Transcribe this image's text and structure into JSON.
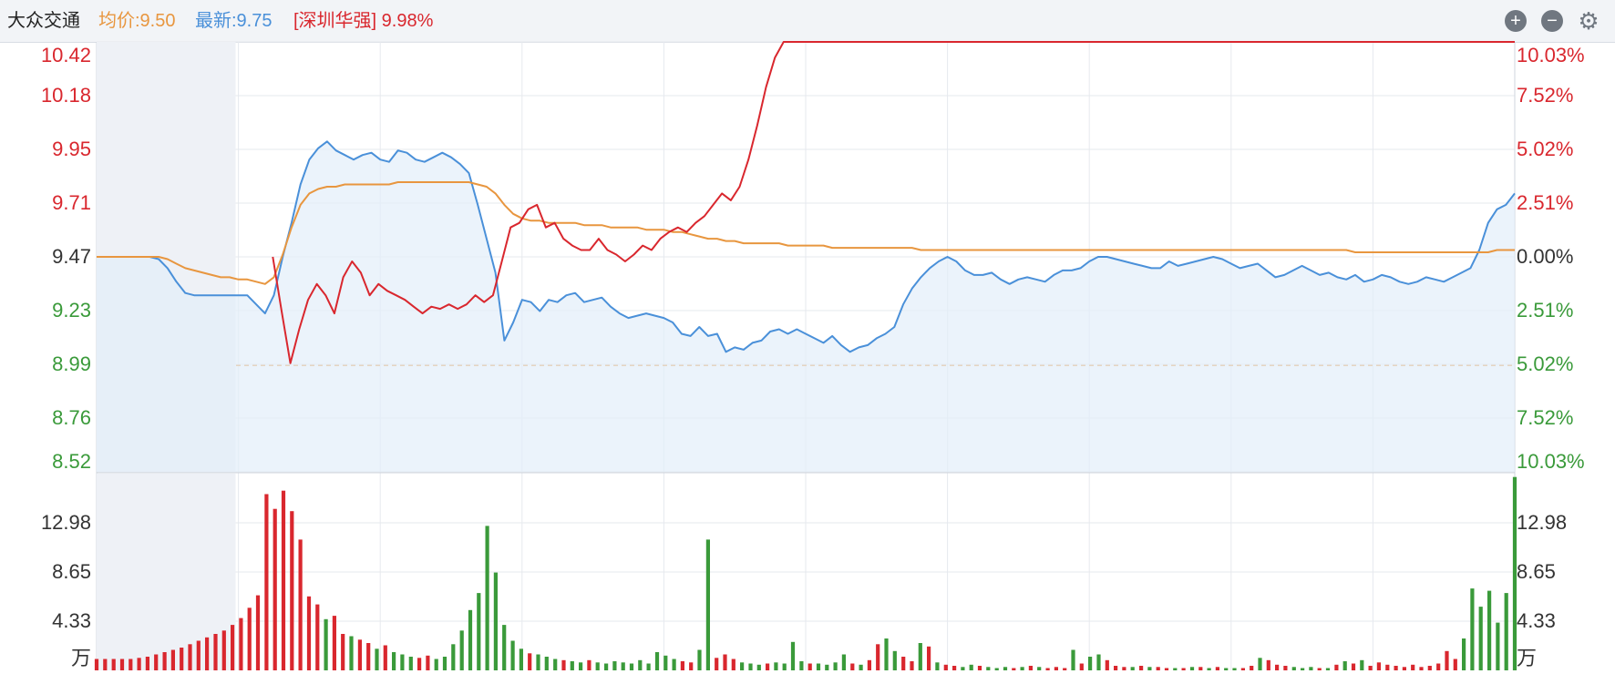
{
  "header": {
    "stock_name": "大众交通",
    "avg_label": "均价:9.50",
    "last_label": "最新:9.75",
    "compare_label": "[深圳华强] 9.98%"
  },
  "colors": {
    "price_line": "#4a90d9",
    "avg_line": "#e8963f",
    "compare_line": "#d9272e",
    "up_red": "#d9272e",
    "down_green": "#3a9a3a",
    "grid": "#e6e9ee",
    "prev_close_line": "#e8963f"
  },
  "icons": {
    "zoom_in": "plus-circle-icon",
    "zoom_out": "minus-circle-icon",
    "settings": "gear-icon"
  },
  "chart_data": {
    "type": "line",
    "title": "大众交通",
    "price_axis_ticks": [
      "10.42",
      "10.18",
      "9.95",
      "9.71",
      "9.47",
      "9.23",
      "8.99",
      "8.76",
      "8.52"
    ],
    "percent_axis_ticks": [
      "10.03%",
      "7.52%",
      "5.02%",
      "2.51%",
      "0.00%",
      "2.51%",
      "5.02%",
      "7.52%",
      "10.03%"
    ],
    "volume_axis_ticks": [
      "12.98",
      "8.65",
      "4.33",
      "万"
    ],
    "ylim_price": [
      8.52,
      10.42
    ],
    "prev_close": 9.47,
    "limit_line_price": 8.99,
    "pre_market_fraction": 0.098,
    "series": [
      {
        "name": "最新",
        "values": [
          9.47,
          9.47,
          9.47,
          9.47,
          9.47,
          9.47,
          9.47,
          9.46,
          9.42,
          9.36,
          9.31,
          9.3,
          9.3,
          9.3,
          9.3,
          9.3,
          9.3,
          9.3,
          9.26,
          9.22,
          9.3,
          9.47,
          9.62,
          9.79,
          9.9,
          9.95,
          9.98,
          9.94,
          9.92,
          9.9,
          9.92,
          9.93,
          9.9,
          9.89,
          9.94,
          9.93,
          9.9,
          9.89,
          9.91,
          9.93,
          9.91,
          9.88,
          9.84,
          9.7,
          9.55,
          9.4,
          9.1,
          9.18,
          9.28,
          9.27,
          9.23,
          9.28,
          9.27,
          9.3,
          9.31,
          9.27,
          9.28,
          9.29,
          9.25,
          9.22,
          9.2,
          9.21,
          9.22,
          9.21,
          9.2,
          9.18,
          9.13,
          9.12,
          9.16,
          9.12,
          9.13,
          9.05,
          9.07,
          9.06,
          9.09,
          9.1,
          9.14,
          9.15,
          9.13,
          9.15,
          9.13,
          9.11,
          9.09,
          9.12,
          9.08,
          9.05,
          9.07,
          9.08,
          9.11,
          9.13,
          9.16,
          9.26,
          9.33,
          9.38,
          9.42,
          9.45,
          9.47,
          9.45,
          9.41,
          9.39,
          9.39,
          9.4,
          9.37,
          9.35,
          9.37,
          9.38,
          9.37,
          9.36,
          9.39,
          9.41,
          9.41,
          9.42,
          9.45,
          9.47,
          9.47,
          9.46,
          9.45,
          9.44,
          9.43,
          9.42,
          9.42,
          9.45,
          9.43,
          9.44,
          9.45,
          9.46,
          9.47,
          9.46,
          9.44,
          9.42,
          9.43,
          9.44,
          9.41,
          9.38,
          9.39,
          9.41,
          9.43,
          9.41,
          9.39,
          9.4,
          9.38,
          9.37,
          9.39,
          9.36,
          9.37,
          9.39,
          9.38,
          9.36,
          9.35,
          9.36,
          9.38,
          9.37,
          9.36,
          9.38,
          9.4,
          9.42,
          9.5,
          9.62,
          9.68,
          9.7,
          9.75
        ]
      },
      {
        "name": "均价",
        "values": [
          9.47,
          9.47,
          9.47,
          9.47,
          9.47,
          9.47,
          9.47,
          9.47,
          9.46,
          9.44,
          9.42,
          9.41,
          9.4,
          9.39,
          9.38,
          9.38,
          9.37,
          9.37,
          9.36,
          9.35,
          9.38,
          9.48,
          9.6,
          9.7,
          9.75,
          9.77,
          9.78,
          9.78,
          9.79,
          9.79,
          9.79,
          9.79,
          9.79,
          9.79,
          9.8,
          9.8,
          9.8,
          9.8,
          9.8,
          9.8,
          9.8,
          9.8,
          9.8,
          9.79,
          9.78,
          9.75,
          9.7,
          9.66,
          9.64,
          9.63,
          9.63,
          9.62,
          9.62,
          9.62,
          9.62,
          9.61,
          9.61,
          9.61,
          9.6,
          9.6,
          9.6,
          9.6,
          9.59,
          9.59,
          9.59,
          9.58,
          9.58,
          9.57,
          9.56,
          9.55,
          9.55,
          9.54,
          9.54,
          9.53,
          9.53,
          9.53,
          9.53,
          9.53,
          9.52,
          9.52,
          9.52,
          9.52,
          9.52,
          9.51,
          9.51,
          9.51,
          9.51,
          9.51,
          9.51,
          9.51,
          9.51,
          9.51,
          9.51,
          9.5,
          9.5,
          9.5,
          9.5,
          9.5,
          9.5,
          9.5,
          9.5,
          9.5,
          9.5,
          9.5,
          9.5,
          9.5,
          9.5,
          9.5,
          9.5,
          9.5,
          9.5,
          9.5,
          9.5,
          9.5,
          9.5,
          9.5,
          9.5,
          9.5,
          9.5,
          9.5,
          9.5,
          9.5,
          9.5,
          9.5,
          9.5,
          9.5,
          9.5,
          9.5,
          9.5,
          9.5,
          9.5,
          9.5,
          9.5,
          9.5,
          9.5,
          9.5,
          9.5,
          9.5,
          9.5,
          9.5,
          9.5,
          9.5,
          9.49,
          9.49,
          9.49,
          9.49,
          9.49,
          9.49,
          9.49,
          9.49,
          9.49,
          9.49,
          9.49,
          9.49,
          9.49,
          9.49,
          9.49,
          9.49,
          9.5,
          9.5,
          9.5
        ]
      },
      {
        "name": "深圳华强",
        "values": [
          null,
          null,
          null,
          null,
          null,
          null,
          null,
          null,
          null,
          null,
          null,
          null,
          null,
          null,
          null,
          null,
          null,
          null,
          null,
          null,
          9.47,
          9.23,
          9.0,
          9.15,
          9.28,
          9.35,
          9.3,
          9.22,
          9.38,
          9.45,
          9.4,
          9.3,
          9.35,
          9.32,
          9.3,
          9.28,
          9.25,
          9.22,
          9.25,
          9.24,
          9.26,
          9.24,
          9.26,
          9.3,
          9.27,
          9.3,
          9.45,
          9.6,
          9.62,
          9.68,
          9.7,
          9.6,
          9.62,
          9.55,
          9.52,
          9.5,
          9.5,
          9.55,
          9.5,
          9.48,
          9.45,
          9.48,
          9.52,
          9.5,
          9.55,
          9.58,
          9.6,
          9.58,
          9.62,
          9.65,
          9.7,
          9.75,
          9.72,
          9.78,
          9.9,
          10.05,
          10.22,
          10.35,
          10.42,
          10.42,
          10.42,
          10.42,
          10.42,
          10.42,
          10.42,
          10.42,
          10.42,
          10.42,
          10.42,
          10.42,
          10.42,
          10.42,
          10.42,
          10.42,
          10.42,
          10.42,
          10.42,
          10.42,
          10.42,
          10.42,
          10.42,
          10.42,
          10.42,
          10.42,
          10.42,
          10.42,
          10.42,
          10.42,
          10.42,
          10.42,
          10.42,
          10.42,
          10.42,
          10.42,
          10.42,
          10.42,
          10.42,
          10.42,
          10.42,
          10.42,
          10.42,
          10.42,
          10.42,
          10.42,
          10.42,
          10.42,
          10.42,
          10.42,
          10.42,
          10.42,
          10.42,
          10.42,
          10.42,
          10.42,
          10.42,
          10.42,
          10.42,
          10.42,
          10.42,
          10.42,
          10.42,
          10.42,
          10.42,
          10.42,
          10.42,
          10.42,
          10.42,
          10.42,
          10.42,
          10.42,
          10.42,
          10.42,
          10.42,
          10.42,
          10.42,
          10.42,
          10.42,
          10.42,
          10.42,
          10.42,
          10.42,
          10.42
        ]
      }
    ],
    "volume": {
      "ylim": [
        0,
        17.3
      ],
      "values": [
        1.0,
        1.0,
        1.0,
        1.0,
        1.0,
        1.1,
        1.2,
        1.4,
        1.6,
        1.8,
        2.0,
        2.3,
        2.6,
        2.9,
        3.2,
        3.5,
        4.0,
        4.6,
        5.5,
        6.6,
        15.5,
        14.2,
        15.8,
        14.0,
        11.5,
        6.5,
        5.8,
        4.5,
        4.8,
        3.2,
        3.0,
        2.7,
        2.4,
        1.9,
        2.2,
        1.6,
        1.4,
        1.2,
        1.1,
        1.3,
        1.0,
        1.2,
        2.3,
        3.5,
        5.3,
        6.8,
        12.7,
        8.6,
        4.0,
        2.6,
        1.9,
        1.5,
        1.4,
        1.2,
        1.0,
        0.9,
        0.8,
        0.7,
        0.9,
        0.7,
        0.6,
        0.8,
        0.7,
        0.6,
        0.9,
        0.6,
        1.6,
        1.3,
        1.0,
        0.8,
        0.7,
        1.8,
        11.5,
        1.1,
        1.4,
        1.0,
        0.7,
        0.6,
        0.5,
        0.6,
        0.7,
        0.6,
        2.5,
        0.8,
        0.6,
        0.6,
        0.5,
        0.7,
        1.4,
        0.6,
        0.5,
        0.9,
        2.3,
        2.8,
        1.7,
        1.2,
        0.8,
        2.4,
        2.1,
        0.7,
        0.5,
        0.4,
        0.3,
        0.5,
        0.4,
        0.3,
        0.2,
        0.3,
        0.2,
        0.3,
        0.4,
        0.3,
        0.2,
        0.3,
        0.2,
        1.8,
        0.6,
        1.2,
        1.4,
        0.9,
        0.4,
        0.3,
        0.3,
        0.4,
        0.3,
        0.3,
        0.2,
        0.2,
        0.2,
        0.3,
        0.3,
        0.2,
        0.3,
        0.2,
        0.2,
        0.2,
        0.4,
        1.1,
        0.9,
        0.5,
        0.4,
        0.3,
        0.2,
        0.3,
        0.2,
        0.2,
        0.5,
        0.8,
        0.6,
        0.9,
        0.4,
        0.7,
        0.5,
        0.4,
        0.3,
        0.5,
        0.3,
        0.4,
        0.6,
        1.7,
        1.0,
        2.8,
        7.2,
        5.6,
        7.0,
        4.2,
        6.8,
        17.0
      ],
      "up": [
        true,
        true,
        true,
        true,
        true,
        true,
        true,
        true,
        true,
        true,
        true,
        true,
        true,
        true,
        true,
        true,
        true,
        true,
        true,
        true,
        true,
        true,
        true,
        true,
        true,
        true,
        true,
        false,
        true,
        true,
        false,
        true,
        true,
        false,
        true,
        false,
        false,
        false,
        true,
        true,
        false,
        false,
        false,
        false,
        false,
        false,
        false,
        false,
        false,
        false,
        false,
        true,
        false,
        false,
        false,
        true,
        false,
        false,
        true,
        false,
        false,
        false,
        false,
        false,
        false,
        false,
        false,
        false,
        false,
        true,
        true,
        false,
        false,
        true,
        true,
        true,
        false,
        false,
        false,
        true,
        false,
        false,
        false,
        false,
        true,
        false,
        false,
        false,
        false,
        true,
        false,
        true,
        true,
        false,
        false,
        true,
        true,
        false,
        true,
        false,
        true,
        true,
        false,
        false,
        true,
        false,
        false,
        false,
        true,
        false,
        true,
        false,
        true,
        true,
        true,
        false,
        true,
        false,
        false,
        true,
        true,
        true,
        false,
        true,
        false,
        true,
        true,
        false,
        true,
        false,
        true,
        false,
        true,
        false,
        false,
        true,
        true,
        false,
        true,
        true,
        true,
        false,
        false,
        false,
        true,
        false,
        true,
        false,
        true,
        false,
        true,
        true,
        true,
        true,
        true,
        true,
        true,
        true,
        true,
        true,
        true
      ]
    }
  }
}
